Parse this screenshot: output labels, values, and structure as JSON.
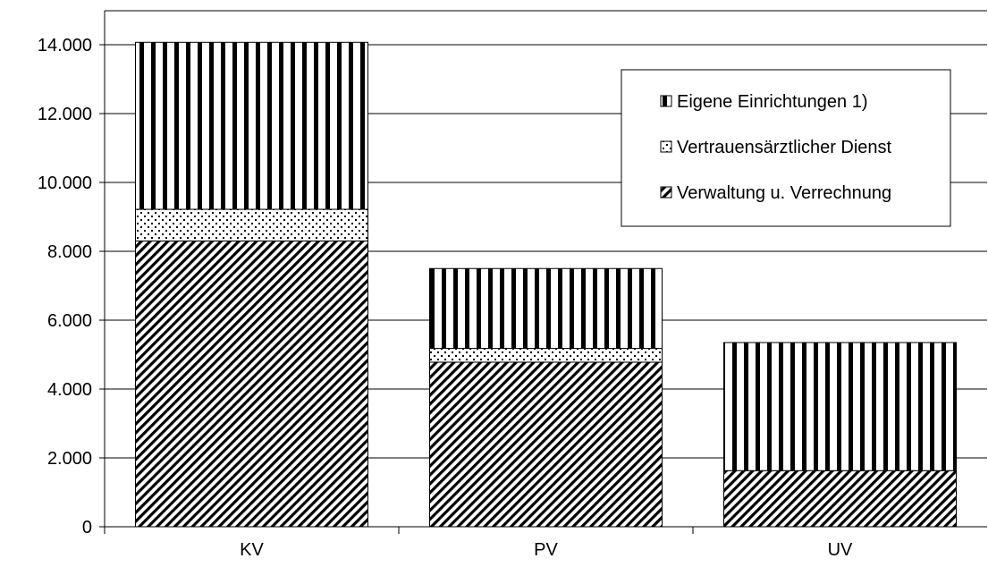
{
  "chart_data": {
    "type": "bar",
    "stacked": true,
    "categories": [
      "KV",
      "PV",
      "UV"
    ],
    "series": [
      {
        "name": "Verwaltung u. Verrechnung",
        "values": [
          8300,
          4780,
          1630
        ],
        "pattern": "diagonal"
      },
      {
        "name": "Vertrauensärztlicher Dienst",
        "values": [
          920,
          400,
          0
        ],
        "pattern": "dots"
      },
      {
        "name": "Eigene Einrichtungen 1)",
        "values": [
          4850,
          2320,
          3720
        ],
        "pattern": "vertical"
      }
    ],
    "ylim": [
      0,
      14000
    ],
    "yticks": [
      0,
      2000,
      4000,
      6000,
      8000,
      10000,
      12000,
      14000
    ],
    "ytick_labels": [
      "0",
      "2.000",
      "4.000",
      "6.000",
      "8.000",
      "10.000",
      "12.000",
      "14.000"
    ],
    "grid": true,
    "legend_position": "top-right",
    "legend_order": [
      "Eigene Einrichtungen 1)",
      "Vertrauensärztlicher Dienst",
      "Verwaltung u. Verrechnung"
    ],
    "title": "",
    "xlabel": "",
    "ylabel": ""
  }
}
